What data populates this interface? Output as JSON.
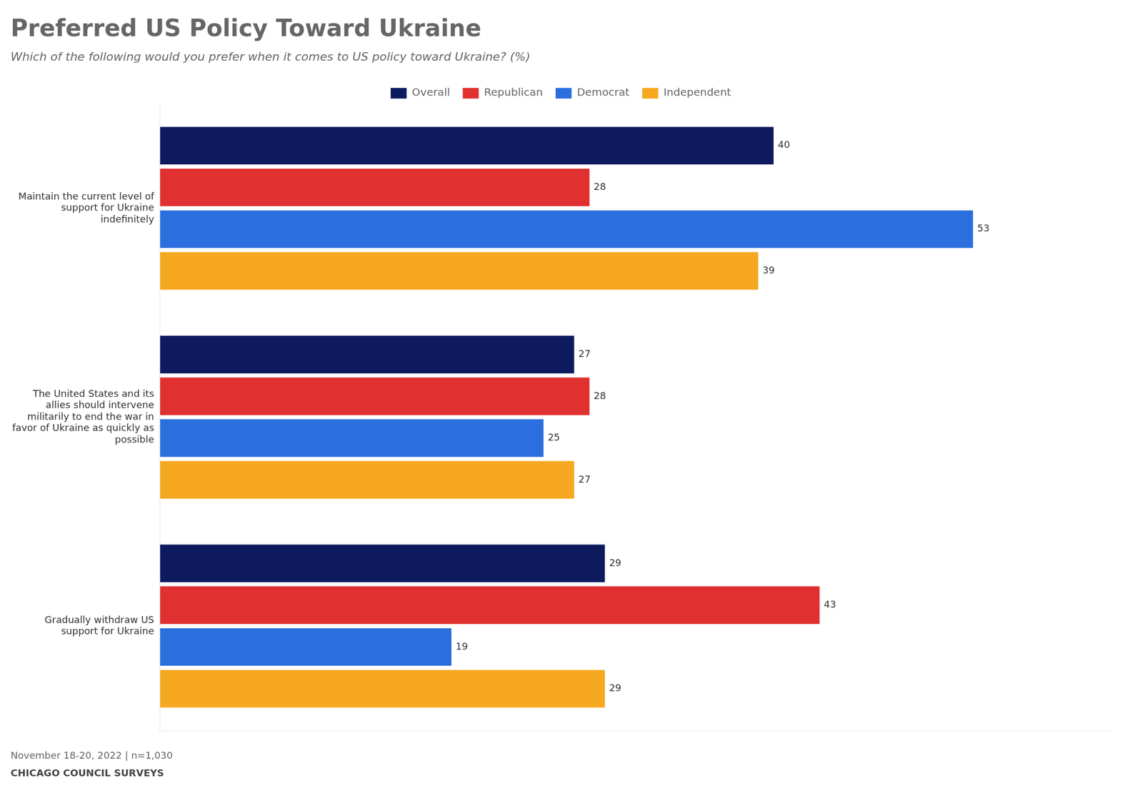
{
  "chart_data": {
    "type": "bar",
    "orientation": "horizontal",
    "title": "Preferred US Policy Toward Ukraine",
    "subtitle": "Which of the following would you prefer when it comes to US policy toward Ukraine? (%)",
    "footnote": "November 18-20, 2022 | n=1,030",
    "source": "CHICAGO COUNCIL SURVEYS",
    "categories": [
      "Maintain the current level of\nsupport for Ukraine\nindefinitely",
      "The United States and its\nallies should intervene\nmilitarily to end the war in\nfavor of Ukraine as quickly as\npossible",
      "Gradually withdraw US\nsupport for Ukraine"
    ],
    "series": [
      {
        "name": "Overall",
        "color": "#0d1b5e",
        "values": [
          40,
          27,
          29
        ]
      },
      {
        "name": "Republican",
        "color": "#e03030",
        "values": [
          28,
          28,
          43
        ]
      },
      {
        "name": "Democrat",
        "color": "#2b6fde",
        "values": [
          53,
          25,
          19
        ]
      },
      {
        "name": "Independent",
        "color": "#f5a820",
        "values": [
          39,
          27,
          29
        ]
      }
    ],
    "xlim": [
      0,
      62
    ],
    "grid": false,
    "legend": "top",
    "data_labels": true,
    "tick_labels": "y"
  }
}
